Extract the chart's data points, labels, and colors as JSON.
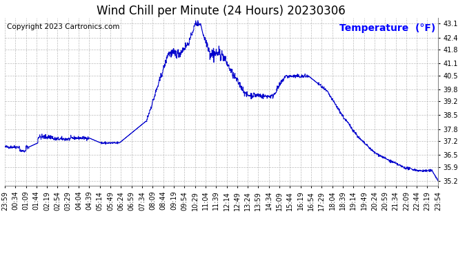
{
  "title": "Wind Chill per Minute (24 Hours) 20230306",
  "copyright": "Copyright 2023 Cartronics.com",
  "legend_label": "Temperature  (°F)",
  "line_color": "#0000cc",
  "legend_color": "#0000ff",
  "background_color": "#ffffff",
  "grid_color": "#aaaaaa",
  "yticks": [
    35.2,
    35.9,
    36.5,
    37.2,
    37.8,
    38.5,
    39.2,
    39.8,
    40.5,
    41.1,
    41.8,
    42.4,
    43.1
  ],
  "ylim": [
    34.95,
    43.38
  ],
  "xtick_labels": [
    "23:59",
    "00:34",
    "01:09",
    "01:44",
    "02:19",
    "02:54",
    "03:29",
    "04:04",
    "04:39",
    "05:14",
    "05:49",
    "06:24",
    "06:59",
    "07:34",
    "08:09",
    "08:44",
    "09:19",
    "09:54",
    "10:29",
    "11:04",
    "11:39",
    "12:14",
    "12:49",
    "13:24",
    "13:59",
    "14:34",
    "15:09",
    "15:44",
    "16:19",
    "16:54",
    "17:29",
    "18:04",
    "18:39",
    "19:14",
    "19:49",
    "20:24",
    "20:59",
    "21:34",
    "22:09",
    "22:44",
    "23:19",
    "23:54"
  ],
  "title_fontsize": 12,
  "tick_fontsize": 7,
  "copyright_fontsize": 7.5,
  "legend_fontsize": 10
}
